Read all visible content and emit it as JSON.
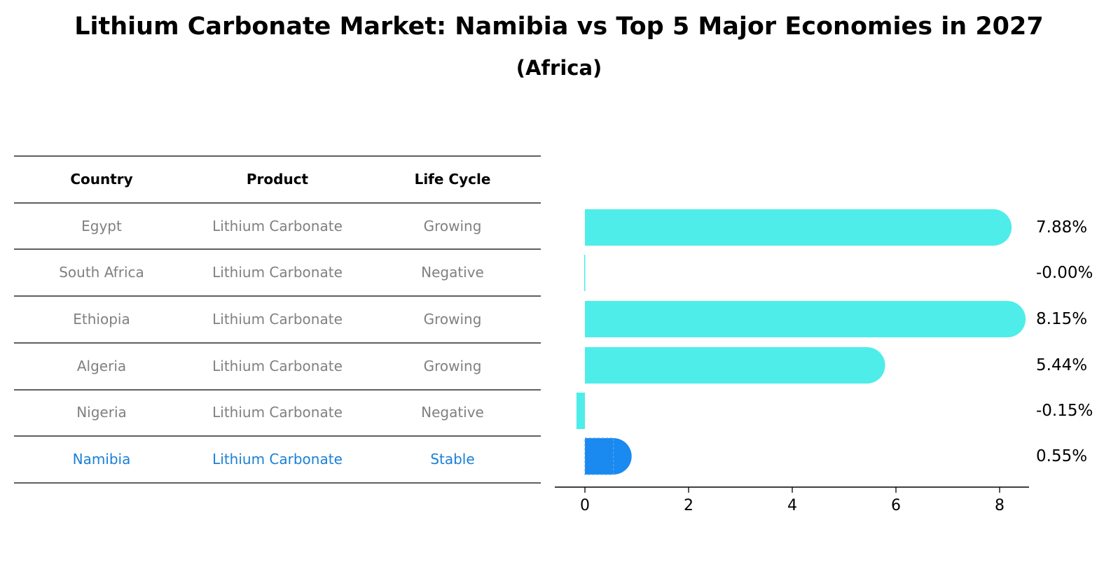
{
  "title": "Lithium Carbonate Market: Namibia vs Top 5 Major Economies in 2027",
  "subtitle": "(Africa)",
  "table": {
    "headers": [
      "Country",
      "Product",
      "Life Cycle"
    ],
    "rows": [
      {
        "country": "Egypt",
        "product": "Lithium Carbonate",
        "life_cycle": "Growing",
        "highlight": false
      },
      {
        "country": "South Africa",
        "product": "Lithium Carbonate",
        "life_cycle": "Negative",
        "highlight": false
      },
      {
        "country": "Ethiopia",
        "product": "Lithium Carbonate",
        "life_cycle": "Growing",
        "highlight": false
      },
      {
        "country": "Algeria",
        "product": "Lithium Carbonate",
        "life_cycle": "Growing",
        "highlight": false
      },
      {
        "country": "Nigeria",
        "product": "Lithium Carbonate",
        "life_cycle": "Negative",
        "highlight": false
      },
      {
        "country": "Namibia",
        "product": "Lithium Carbonate",
        "life_cycle": "Stable",
        "highlight": true
      }
    ]
  },
  "chart_data": {
    "type": "bar",
    "orientation": "horizontal",
    "categories": [
      "Egypt",
      "South Africa",
      "Ethiopia",
      "Algeria",
      "Nigeria",
      "Namibia"
    ],
    "values": [
      7.88,
      -0.0,
      8.15,
      5.44,
      -0.15,
      0.55
    ],
    "value_labels": [
      "7.88%",
      "-0.00%",
      "8.15%",
      "5.44%",
      "-0.15%",
      "0.55%"
    ],
    "highlight_index": 5,
    "xlim": [
      -0.6,
      8.6
    ],
    "xticks": [
      0,
      2,
      4,
      6,
      8
    ],
    "xtick_labels": [
      "0",
      "2",
      "4",
      "6",
      "8"
    ],
    "colors": {
      "bar": "#4eede9",
      "highlight": "#1a89f0"
    }
  }
}
